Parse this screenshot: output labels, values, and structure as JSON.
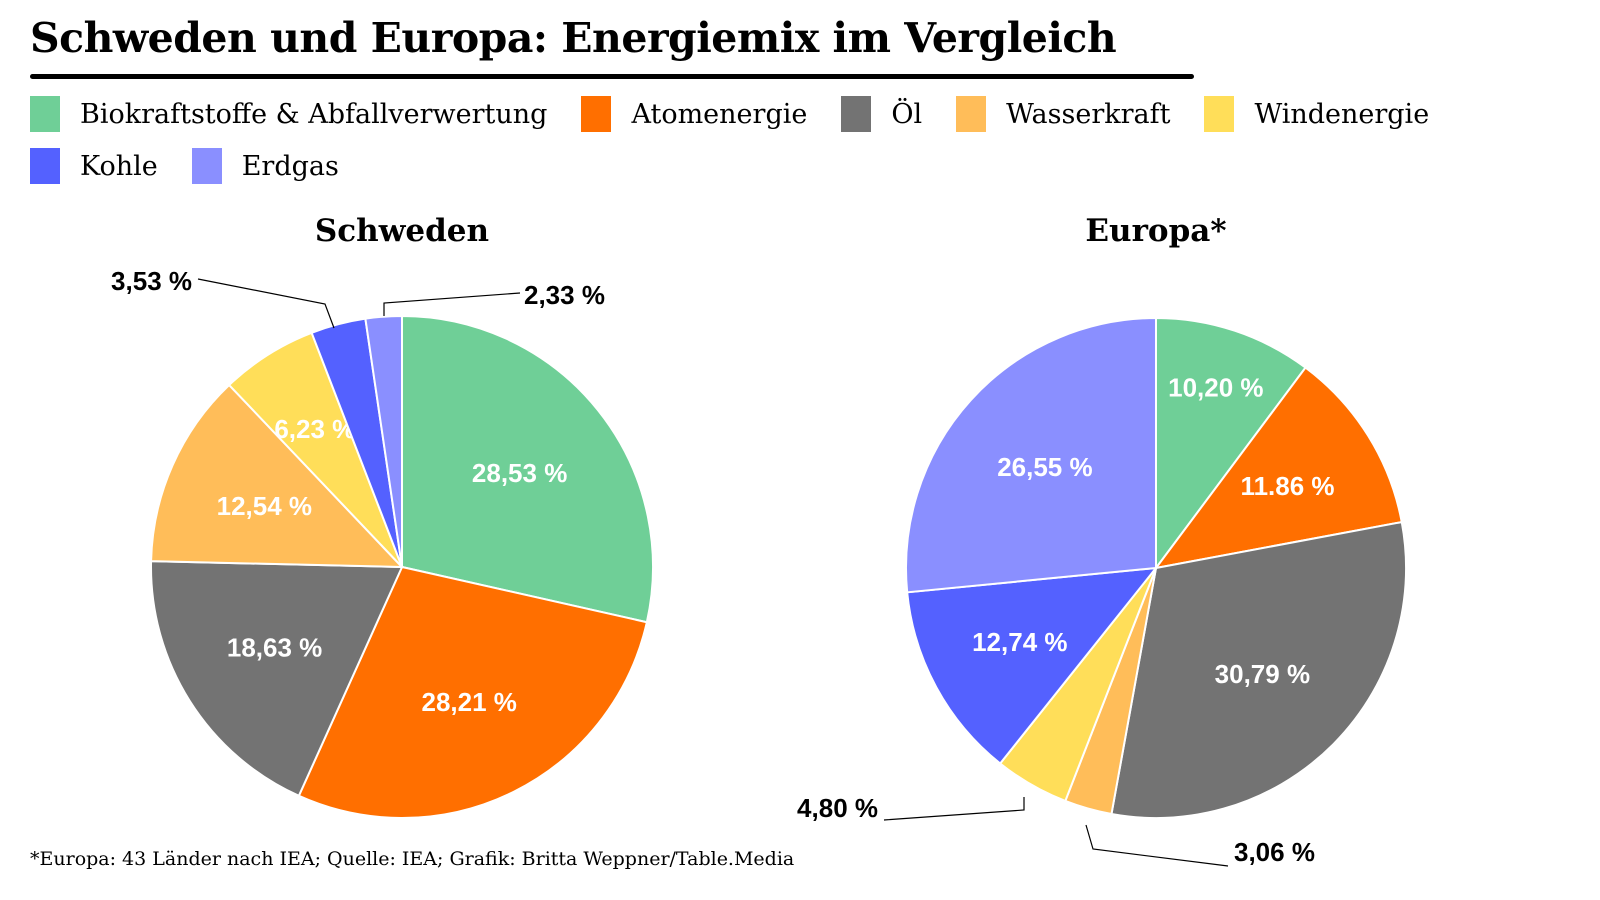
{
  "title": "Schweden und Europa: Energiemix im Vergleich",
  "legend": [
    {
      "label": "Biokraftstoffe & Abfallverwertung",
      "color": "#6fcf97"
    },
    {
      "label": "Atomenergie",
      "color": "#ff6f00"
    },
    {
      "label": "Öl",
      "color": "#737373"
    },
    {
      "label": "Wasserkraft",
      "color": "#ffbd59"
    },
    {
      "label": "Windenergie",
      "color": "#ffde59"
    },
    {
      "label": "Kohle",
      "color": "#5461ff"
    },
    {
      "label": "Erdgas",
      "color": "#8a8fff"
    }
  ],
  "footnote": "*Europa: 43 Länder nach IEA; Quelle: IEA; Grafik: Britta Weppner/Table.Media",
  "chart_data": [
    {
      "type": "pie",
      "title": "Schweden",
      "categories": [
        "Biokraftstoffe & Abfallverwertung",
        "Atomenergie",
        "Öl",
        "Wasserkraft",
        "Windenergie",
        "Kohle",
        "Erdgas"
      ],
      "values": [
        28.53,
        28.21,
        18.63,
        12.54,
        6.23,
        3.53,
        2.33
      ],
      "labels": [
        "28,53 %",
        "28,21 %",
        "18,63 %",
        "12,54 %",
        "6,23 %",
        "3,53 %",
        "2,33 %"
      ],
      "outside_labels": [
        "Kohle",
        "Erdgas"
      ],
      "start": "12 o'clock, clockwise"
    },
    {
      "type": "pie",
      "title": "Europa*",
      "categories": [
        "Biokraftstoffe & Abfallverwertung",
        "Atomenergie",
        "Öl",
        "Wasserkraft",
        "Windenergie",
        "Kohle",
        "Erdgas"
      ],
      "values": [
        10.2,
        11.86,
        30.79,
        3.06,
        4.8,
        12.74,
        26.55
      ],
      "labels": [
        "10,20 %",
        "11.86 %",
        "30,79 %",
        "3,06 %",
        "4,80 %",
        "12,74 %",
        "26,55 %"
      ],
      "outside_labels": [
        "Wasserkraft",
        "Windenergie"
      ],
      "start": "12 o'clock, clockwise"
    }
  ]
}
